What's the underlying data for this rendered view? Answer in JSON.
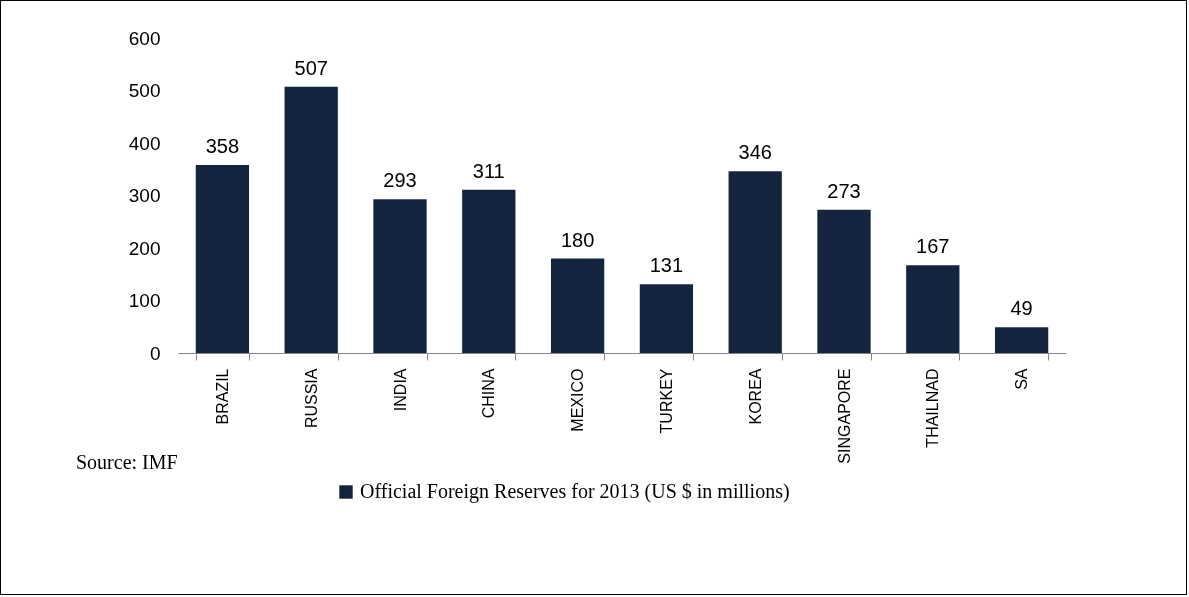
{
  "chart_data": {
    "type": "bar",
    "categories": [
      "BRAZIL",
      "RUSSIA",
      "INDIA",
      "CHINA",
      "MEXICO",
      "TURKEY",
      "KOREA",
      "SINGAPORE",
      "THAILNAD",
      "SA"
    ],
    "series": [
      {
        "name": "Official Foreign Reserves for 2013 (US $ in millions)",
        "color": "#14243f",
        "values": [
          358,
          507,
          293,
          311,
          180,
          131,
          346,
          273,
          167,
          49
        ]
      }
    ],
    "ylim": [
      0,
      600
    ],
    "yticks": [
      0,
      100,
      200,
      300,
      400,
      500,
      600
    ],
    "grid": false,
    "legend": "bottom",
    "data_labels": true,
    "annotations": [
      "Source: IMF"
    ]
  }
}
